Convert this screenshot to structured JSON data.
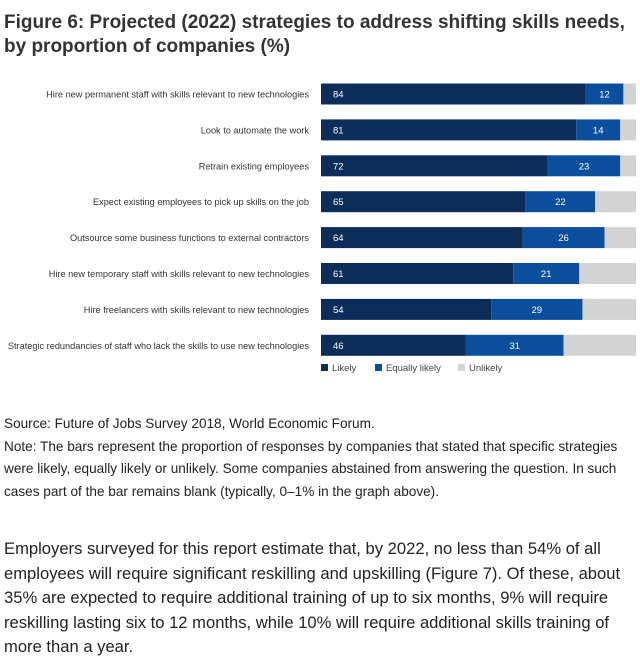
{
  "title": "Figure 6: Projected (2022) strategies to address shifting skills needs, by proportion of companies (%)",
  "chart_data": {
    "type": "bar",
    "orientation": "horizontal",
    "stacked": true,
    "categories": [
      "Hire new permanent staff with skills relevant to new technologies",
      "Look to automate the work",
      "Retrain existing employees",
      "Expect existing employees to pick up skills on the job",
      "Outsource some business functions to external contractors",
      "Hire new temporary staff with skills relevant to new technologies",
      "Hire freelancers with skills relevant to new technologies",
      "Strategic redundancies of staff who lack the skills to use new technologies"
    ],
    "series": [
      {
        "name": "Likely",
        "color": "#0c2c5a",
        "values": [
          84,
          81,
          72,
          65,
          64,
          61,
          54,
          46
        ]
      },
      {
        "name": "Equally likely",
        "color": "#0b4f9c",
        "values": [
          12,
          14,
          23,
          22,
          26,
          21,
          29,
          31
        ]
      },
      {
        "name": "Unlikely",
        "color": "#d3d3d3",
        "values": [
          4,
          5,
          5,
          13,
          10,
          18,
          17,
          23
        ]
      }
    ],
    "xlim": [
      0,
      100
    ],
    "grid": false,
    "legend": "bottom-left"
  },
  "source": "Source: Future of Jobs Survey 2018, World Economic Forum.",
  "note": "Note: The bars represent the proportion of responses by companies that stated that specific strategies were likely, equally likely or unlikely. Some companies abstained from answering the question. In such cases part of the bar remains blank (typically, 0–1% in the graph above).",
  "paragraph": "Employers surveyed for this report estimate that, by 2022, no less than 54% of all employees will require significant reskilling and upskilling (Figure 7). Of these, about 35% are expected to require additional training of up to six months, 9% will require reskilling lasting six to 12 months, while 10% will require additional skills training of more than a year."
}
